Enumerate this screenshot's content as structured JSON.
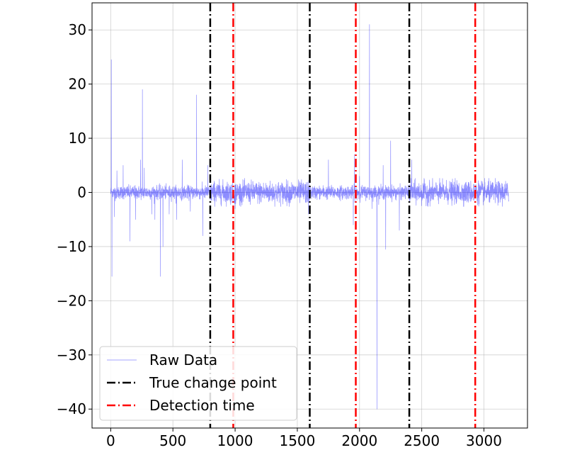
{
  "chart_data": {
    "type": "line",
    "title": "",
    "xlabel": "",
    "ylabel": "",
    "xlim": [
      -150,
      3350
    ],
    "ylim": [
      -43.5,
      35
    ],
    "grid": true,
    "x_ticks": [
      0,
      500,
      1000,
      1500,
      2000,
      2500,
      3000
    ],
    "y_ticks": [
      30,
      20,
      10,
      0,
      -10,
      -20,
      -30,
      -40
    ],
    "x_tick_labels": [
      "0",
      "500",
      "1000",
      "1500",
      "2000",
      "2500",
      "3000"
    ],
    "y_tick_labels": [
      "30",
      "20",
      "10",
      "0",
      "−10",
      "−20",
      "−30",
      "−40"
    ],
    "legend_position": "lower-left",
    "series": [
      {
        "name": "Raw Data",
        "color": "#0000ff",
        "style": "solid-thin",
        "x_range": [
          0,
          3200
        ],
        "n_points": 3200,
        "noise_std_by_segment": [
          {
            "x": [
              0,
              800
            ],
            "std": 0.6
          },
          {
            "x": [
              800,
              1600
            ],
            "std": 1.0
          },
          {
            "x": [
              1600,
              2400
            ],
            "std": 0.6
          },
          {
            "x": [
              2400,
              3200
            ],
            "std": 1.0
          }
        ],
        "outliers": [
          {
            "x": 5,
            "y": 24.5
          },
          {
            "x": 10,
            "y": -15.5
          },
          {
            "x": 30,
            "y": -4.5
          },
          {
            "x": 50,
            "y": 4
          },
          {
            "x": 100,
            "y": 5
          },
          {
            "x": 155,
            "y": -9
          },
          {
            "x": 200,
            "y": -5
          },
          {
            "x": 240,
            "y": 6
          },
          {
            "x": 255,
            "y": 19
          },
          {
            "x": 270,
            "y": 4.5
          },
          {
            "x": 330,
            "y": -4
          },
          {
            "x": 355,
            "y": -5
          },
          {
            "x": 400,
            "y": -15.5
          },
          {
            "x": 420,
            "y": -10
          },
          {
            "x": 470,
            "y": -4
          },
          {
            "x": 530,
            "y": -5
          },
          {
            "x": 575,
            "y": 6
          },
          {
            "x": 640,
            "y": -3.5
          },
          {
            "x": 690,
            "y": 18
          },
          {
            "x": 740,
            "y": -8
          },
          {
            "x": 780,
            "y": 5
          },
          {
            "x": 1000,
            "y": -3
          },
          {
            "x": 1590,
            "y": -4
          },
          {
            "x": 1750,
            "y": 6
          },
          {
            "x": 1950,
            "y": -6
          },
          {
            "x": 1960,
            "y": 7
          },
          {
            "x": 2000,
            "y": 3
          },
          {
            "x": 2080,
            "y": 31
          },
          {
            "x": 2100,
            "y": -3
          },
          {
            "x": 2140,
            "y": -40
          },
          {
            "x": 2190,
            "y": 5
          },
          {
            "x": 2210,
            "y": -10.5
          },
          {
            "x": 2250,
            "y": 9.5
          },
          {
            "x": 2320,
            "y": -7
          },
          {
            "x": 2420,
            "y": 6
          }
        ]
      },
      {
        "name": "True change point",
        "color": "#000000",
        "style": "dashdot",
        "vlines": [
          800,
          1600,
          2400
        ]
      },
      {
        "name": "Detection time",
        "color": "#ff0000",
        "style": "dashdot",
        "vlines": [
          985,
          1970,
          2930
        ]
      }
    ]
  }
}
